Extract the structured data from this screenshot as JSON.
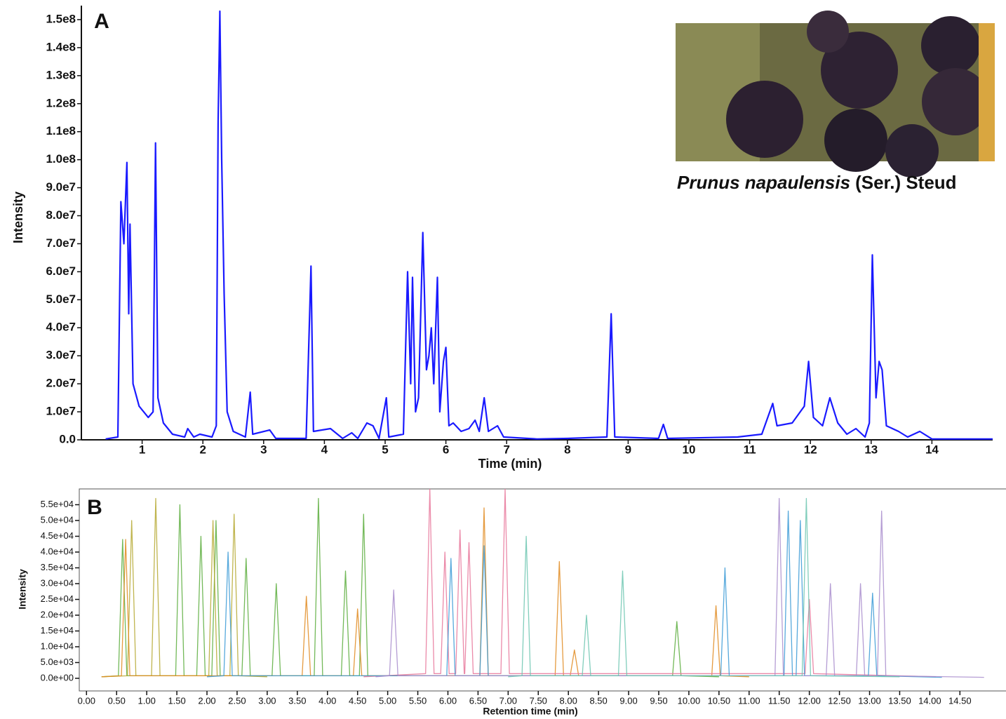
{
  "photo_caption": {
    "species": "Prunus napaulensis",
    "authority": "(Ser.) Steud"
  },
  "chart_data": [
    {
      "type": "line",
      "panel_label": "A",
      "xlabel": "Time (min)",
      "ylabel": "Intensity",
      "xlim": [
        0,
        15
      ],
      "ylim": [
        0,
        155000000.0
      ],
      "xticks": [
        1,
        2,
        3,
        4,
        5,
        6,
        7,
        8,
        9,
        10,
        11,
        12,
        13,
        14
      ],
      "yticks": [
        {
          "value": 0,
          "label": "0.0"
        },
        {
          "value": 10000000.0,
          "label": "1.0e7"
        },
        {
          "value": 20000000.0,
          "label": "2.0e7"
        },
        {
          "value": 30000000.0,
          "label": "3.0e7"
        },
        {
          "value": 40000000.0,
          "label": "4.0e7"
        },
        {
          "value": 50000000.0,
          "label": "5.0e7"
        },
        {
          "value": 60000000.0,
          "label": "6.0e7"
        },
        {
          "value": 70000000.0,
          "label": "7.0e7"
        },
        {
          "value": 80000000.0,
          "label": "8.0e7"
        },
        {
          "value": 90000000.0,
          "label": "9.0e7"
        },
        {
          "value": 100000000.0,
          "label": "1.0e8"
        },
        {
          "value": 110000000.0,
          "label": "1.1e8"
        },
        {
          "value": 120000000.0,
          "label": "1.2e8"
        },
        {
          "value": 130000000.0,
          "label": "1.3e8"
        },
        {
          "value": 140000000.0,
          "label": "1.4e8"
        },
        {
          "value": 150000000.0,
          "label": "1.5e8"
        }
      ],
      "series": [
        {
          "color": "#1a1aff",
          "x": [
            0.4,
            0.6,
            0.65,
            0.7,
            0.75,
            0.78,
            0.8,
            0.85,
            0.95,
            1.1,
            1.18,
            1.22,
            1.26,
            1.35,
            1.5,
            1.7,
            1.75,
            1.85,
            1.95,
            2.15,
            2.22,
            2.25,
            2.28,
            2.31,
            2.35,
            2.4,
            2.5,
            2.7,
            2.78,
            2.82,
            3.1,
            3.2,
            3.7,
            3.78,
            3.82,
            4.1,
            4.3,
            4.45,
            4.55,
            4.7,
            4.8,
            4.9,
            5.02,
            5.06,
            5.3,
            5.37,
            5.42,
            5.45,
            5.5,
            5.55,
            5.62,
            5.68,
            5.72,
            5.76,
            5.8,
            5.86,
            5.9,
            5.96,
            6.0,
            6.05,
            6.12,
            6.25,
            6.38,
            6.48,
            6.55,
            6.63,
            6.7,
            6.85,
            6.95,
            7.5,
            8.0,
            8.65,
            8.72,
            8.78,
            9.5,
            9.58,
            9.65,
            10.8,
            11.2,
            11.38,
            11.45,
            11.7,
            11.9,
            11.97,
            12.05,
            12.2,
            12.32,
            12.45,
            12.6,
            12.75,
            12.9,
            12.97,
            13.02,
            13.08,
            13.13,
            13.18,
            13.25,
            13.45,
            13.6,
            13.8,
            14.0,
            15
          ],
          "values": [
            300000.0,
            1000000.0,
            85000000.0,
            70000000.0,
            99000000.0,
            45000000.0,
            77000000.0,
            20000000.0,
            12000000.0,
            8000000.0,
            10000000.0,
            106000000.0,
            15000000.0,
            6000000.0,
            2000000.0,
            1000000.0,
            4000000.0,
            1000000.0,
            2000000.0,
            1000000.0,
            5000000.0,
            113000000.0,
            153000000.0,
            100000000.0,
            52000000.0,
            10000000.0,
            3000000.0,
            1000000.0,
            17000000.0,
            2000000.0,
            3500000.0,
            500000.0,
            500000.0,
            62000000.0,
            3000000.0,
            4000000.0,
            500000.0,
            2500000.0,
            500000.0,
            6000000.0,
            5000000.0,
            500000.0,
            15000000.0,
            1000000.0,
            2000000.0,
            60000000.0,
            20000000.0,
            58000000.0,
            10000000.0,
            15000000.0,
            74000000.0,
            25000000.0,
            30000000.0,
            40000000.0,
            20000000.0,
            58000000.0,
            10000000.0,
            28000000.0,
            33000000.0,
            5000000.0,
            6000000.0,
            3000000.0,
            4000000.0,
            7000000.0,
            3000000.0,
            15000000.0,
            3000000.0,
            5000000.0,
            1000000.0,
            300000.0,
            500000.0,
            1000000.0,
            45000000.0,
            1000000.0,
            500000.0,
            5500000.0,
            500000.0,
            1000000.0,
            2000000.0,
            13000000.0,
            5000000.0,
            6000000.0,
            12000000.0,
            28000000.0,
            8000000.0,
            5000000.0,
            15000000.0,
            6000000.0,
            2000000.0,
            4000000.0,
            1000000.0,
            6000000.0,
            66000000.0,
            15000000.0,
            28000000.0,
            25000000.0,
            5000000.0,
            3000000.0,
            1000000.0,
            3000000.0,
            300000.0,
            300000.0
          ]
        }
      ]
    },
    {
      "type": "line",
      "panel_label": "B",
      "xlabel": "Retention time (min)",
      "ylabel": "Intensity",
      "xlim": [
        -0.12,
        15.3
      ],
      "ylim": [
        -4000,
        60000
      ],
      "xticks": [
        {
          "value": 0,
          "label": "0.00"
        },
        {
          "value": 0.5,
          "label": "0.50"
        },
        {
          "value": 1,
          "label": "1.00"
        },
        {
          "value": 1.5,
          "label": "1.50"
        },
        {
          "value": 2,
          "label": "2.00"
        },
        {
          "value": 2.5,
          "label": "2.50"
        },
        {
          "value": 3,
          "label": "3.00"
        },
        {
          "value": 3.5,
          "label": "3.50"
        },
        {
          "value": 4,
          "label": "4.00"
        },
        {
          "value": 4.5,
          "label": "4.50"
        },
        {
          "value": 5,
          "label": "5.00"
        },
        {
          "value": 5.5,
          "label": "5.50"
        },
        {
          "value": 6,
          "label": "6.00"
        },
        {
          "value": 6.5,
          "label": "6.50"
        },
        {
          "value": 7,
          "label": "7.00"
        },
        {
          "value": 7.5,
          "label": "7.50"
        },
        {
          "value": 8,
          "label": "8.00"
        },
        {
          "value": 8.5,
          "label": "8.50"
        },
        {
          "value": 9,
          "label": "9.00"
        },
        {
          "value": 9.5,
          "label": "9.50"
        },
        {
          "value": 10,
          "label": "10.00"
        },
        {
          "value": 10.5,
          "label": "10.50"
        },
        {
          "value": 11,
          "label": "11.00"
        },
        {
          "value": 11.5,
          "label": "11.50"
        },
        {
          "value": 12,
          "label": "12.00"
        },
        {
          "value": 12.5,
          "label": "12.50"
        },
        {
          "value": 13,
          "label": "13.00"
        },
        {
          "value": 13.5,
          "label": "13.50"
        },
        {
          "value": 14,
          "label": "14.00"
        },
        {
          "value": 14.5,
          "label": "14.50"
        }
      ],
      "yticks": [
        {
          "value": 0,
          "label": "0.0e+00"
        },
        {
          "value": 5000,
          "label": "5.0e+03"
        },
        {
          "value": 10000,
          "label": "1.0e+04"
        },
        {
          "value": 15000,
          "label": "1.5e+04"
        },
        {
          "value": 20000,
          "label": "2.0e+04"
        },
        {
          "value": 25000,
          "label": "2.5e+04"
        },
        {
          "value": 30000,
          "label": "3.0e+04"
        },
        {
          "value": 35000,
          "label": "3.5e+04"
        },
        {
          "value": 40000,
          "label": "4.0e+04"
        },
        {
          "value": 45000,
          "label": "4.5e+04"
        },
        {
          "value": 50000,
          "label": "5.0e+04"
        },
        {
          "value": 55000,
          "label": "5.5e+04"
        }
      ],
      "series": [
        {
          "color": "#5aad3c",
          "x": [
            0.25,
            0.53,
            0.6,
            0.67,
            1.48,
            1.55,
            1.62,
            1.83,
            1.9,
            1.97,
            2.08,
            2.15,
            2.22,
            2.58,
            2.65,
            2.72,
            3.08,
            3.15,
            3.22,
            3.78,
            3.85,
            3.92,
            4.23,
            4.3,
            4.37,
            4.53,
            4.6,
            4.67,
            9.73,
            9.8,
            9.87,
            10.5
          ],
          "values": [
            500,
            800,
            44000,
            800,
            800,
            55000,
            800,
            800,
            45000,
            800,
            800,
            50000,
            800,
            800,
            38000,
            800,
            800,
            30000,
            800,
            800,
            57000,
            800,
            800,
            34000,
            800,
            800,
            52000,
            800,
            800,
            18000,
            800,
            500
          ]
        },
        {
          "color": "#b5a830",
          "x": [
            0.25,
            0.68,
            0.75,
            0.82,
            1.08,
            1.15,
            1.22,
            2.03,
            2.1,
            2.17,
            2.38,
            2.45,
            2.52,
            3.0
          ],
          "values": [
            500,
            800,
            50000,
            800,
            800,
            57000,
            800,
            800,
            50000,
            800,
            800,
            52000,
            800,
            500
          ]
        },
        {
          "color": "#e08a1e",
          "x": [
            0.25,
            0.58,
            0.65,
            0.72,
            3.58,
            3.65,
            3.72,
            4.43,
            4.5,
            4.57,
            6.53,
            6.6,
            6.67,
            7.78,
            7.85,
            7.92,
            8.03,
            8.1,
            8.17,
            10.38,
            10.45,
            10.52,
            11.0
          ],
          "values": [
            500,
            800,
            44000,
            800,
            800,
            26000,
            800,
            800,
            22000,
            800,
            800,
            54000,
            800,
            800,
            37000,
            800,
            800,
            9000,
            800,
            800,
            23000,
            800,
            500
          ]
        },
        {
          "color": "#e8769a",
          "x": [
            4.6,
            5.63,
            5.7,
            5.77,
            5.88,
            5.95,
            6.02,
            6.13,
            6.2,
            6.27,
            6.28,
            6.35,
            6.42,
            6.88,
            6.95,
            7.02,
            11.93,
            12.0,
            12.07,
            14.1
          ],
          "values": [
            500,
            1500,
            60000,
            1500,
            1500,
            40000,
            1500,
            1500,
            47000,
            1500,
            1500,
            43000,
            1500,
            1500,
            60000,
            1500,
            1500,
            25000,
            1500,
            500
          ]
        },
        {
          "color": "#3a9ad6",
          "x": [
            2.0,
            2.28,
            2.35,
            2.42,
            5.98,
            6.05,
            6.12,
            6.53,
            6.6,
            6.67,
            10.53,
            10.6,
            10.67,
            11.58,
            11.65,
            11.72,
            11.78,
            11.85,
            11.92,
            12.98,
            13.05,
            13.12,
            14.2
          ],
          "values": [
            500,
            800,
            40000,
            800,
            800,
            38000,
            800,
            800,
            42000,
            800,
            800,
            35000,
            800,
            800,
            53000,
            800,
            800,
            50000,
            800,
            800,
            27000,
            800,
            300
          ]
        },
        {
          "color": "#a88ccc",
          "x": [
            4.8,
            5.03,
            5.1,
            5.17,
            11.43,
            11.5,
            11.57,
            12.28,
            12.35,
            12.42,
            12.78,
            12.85,
            12.92,
            13.13,
            13.2,
            13.27,
            14.9
          ],
          "values": [
            500,
            800,
            28000,
            800,
            800,
            57000,
            800,
            800,
            30000,
            800,
            800,
            30000,
            800,
            800,
            53000,
            800,
            300
          ]
        },
        {
          "color": "#6cc6b0",
          "x": [
            7.0,
            7.23,
            7.3,
            7.37,
            8.23,
            8.3,
            8.37,
            8.83,
            8.9,
            8.97,
            11.88,
            11.95,
            12.02,
            13.5
          ],
          "values": [
            500,
            800,
            45000,
            800,
            800,
            20000,
            800,
            800,
            34000,
            800,
            800,
            57000,
            800,
            500
          ]
        }
      ]
    }
  ]
}
